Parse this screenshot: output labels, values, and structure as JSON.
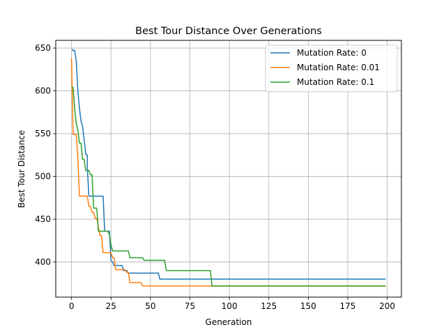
{
  "chart_data": {
    "type": "line",
    "title": "Best Tour Distance Over Generations",
    "xlabel": "Generation",
    "ylabel": "Best Tour Distance",
    "xlim": [
      -10,
      209
    ],
    "ylim": [
      359,
      659
    ],
    "xticks": [
      0,
      25,
      50,
      75,
      100,
      125,
      150,
      175,
      200
    ],
    "yticks": [
      400,
      450,
      500,
      550,
      600,
      650
    ],
    "grid": true,
    "legend_position": "top-right",
    "series": [
      {
        "name": "Mutation Rate: 0",
        "color": "#1f77b4",
        "points": [
          [
            0,
            648
          ],
          [
            1,
            648
          ],
          [
            1,
            647
          ],
          [
            2,
            647
          ],
          [
            3,
            635
          ],
          [
            4,
            600
          ],
          [
            5,
            580
          ],
          [
            6,
            565
          ],
          [
            7,
            558
          ],
          [
            8,
            543
          ],
          [
            9,
            526
          ],
          [
            10,
            525
          ],
          [
            10,
            510
          ],
          [
            11,
            477
          ],
          [
            20,
            477
          ],
          [
            21,
            436
          ],
          [
            24,
            436
          ],
          [
            25,
            402
          ],
          [
            26,
            400
          ],
          [
            27,
            396
          ],
          [
            32,
            396
          ],
          [
            33,
            390
          ],
          [
            35,
            390
          ],
          [
            36,
            387
          ],
          [
            55,
            387
          ],
          [
            56,
            380
          ],
          [
            199,
            380
          ]
        ]
      },
      {
        "name": "Mutation Rate: 0.01",
        "color": "#ff7f0e",
        "points": [
          [
            0,
            638
          ],
          [
            1,
            549
          ],
          [
            3,
            549
          ],
          [
            4,
            522
          ],
          [
            5,
            477
          ],
          [
            10,
            477
          ],
          [
            11,
            465
          ],
          [
            12,
            465
          ],
          [
            13,
            458
          ],
          [
            14,
            458
          ],
          [
            15,
            451
          ],
          [
            16,
            451
          ],
          [
            17,
            441
          ],
          [
            18,
            431
          ],
          [
            19,
            431
          ],
          [
            20,
            411
          ],
          [
            25,
            411
          ],
          [
            26,
            405
          ],
          [
            27,
            405
          ],
          [
            28,
            391
          ],
          [
            34,
            391
          ],
          [
            35,
            388
          ],
          [
            36,
            388
          ],
          [
            37,
            376
          ],
          [
            44,
            376
          ],
          [
            45,
            372
          ],
          [
            199,
            372
          ]
        ]
      },
      {
        "name": "Mutation Rate: 0.1",
        "color": "#2ca02c",
        "points": [
          [
            0,
            604
          ],
          [
            1,
            604
          ],
          [
            2,
            578
          ],
          [
            3,
            562
          ],
          [
            4,
            554
          ],
          [
            5,
            539
          ],
          [
            6,
            539
          ],
          [
            7,
            520
          ],
          [
            8,
            520
          ],
          [
            9,
            507
          ],
          [
            11,
            507
          ],
          [
            12,
            502
          ],
          [
            13,
            502
          ],
          [
            14,
            463
          ],
          [
            16,
            463
          ],
          [
            17,
            436
          ],
          [
            23,
            436
          ],
          [
            24,
            432
          ],
          [
            25,
            420
          ],
          [
            26,
            413
          ],
          [
            36,
            413
          ],
          [
            37,
            405
          ],
          [
            45,
            405
          ],
          [
            46,
            402
          ],
          [
            59,
            402
          ],
          [
            60,
            390
          ],
          [
            88,
            390
          ],
          [
            89,
            372
          ],
          [
            199,
            372
          ]
        ]
      }
    ]
  }
}
